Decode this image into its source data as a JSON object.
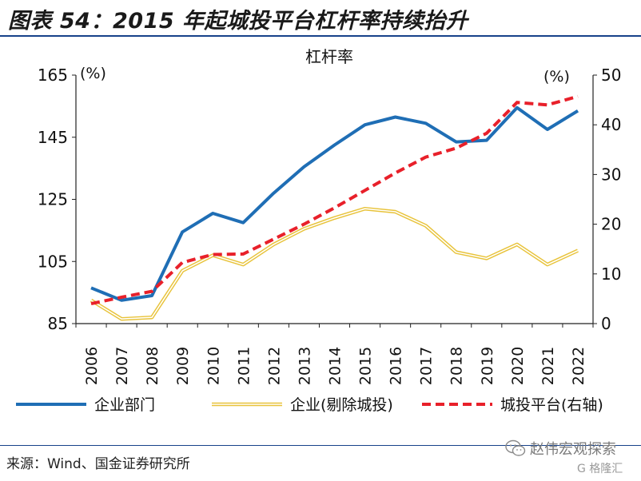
{
  "figure": {
    "label": "图表 54：2015 年起城投平台杠杆率持续抬升",
    "source": "来源：Wind、国金证券研究所",
    "watermark": "赵伟宏观探索",
    "stamp": "G 格隆汇"
  },
  "chart_data": {
    "type": "line",
    "title": "杠杆率",
    "left_unit": "(%)",
    "right_unit": "(%)",
    "x": [
      "2006",
      "2007",
      "2008",
      "2009",
      "2010",
      "2011",
      "2012",
      "2013",
      "2014",
      "2015",
      "2016",
      "2017",
      "2018",
      "2019",
      "2020",
      "2021",
      "2022"
    ],
    "y_left": {
      "lim": [
        85,
        165
      ],
      "ticks": [
        "85",
        "105",
        "125",
        "145",
        "165"
      ]
    },
    "y_right": {
      "lim": [
        0,
        50
      ],
      "ticks": [
        "0",
        "10",
        "20",
        "30",
        "40",
        "50"
      ]
    },
    "series": [
      {
        "name": "企业部门",
        "axis": "left",
        "color": "#1f6eb5",
        "style": "solid",
        "values": [
          96.5,
          92.5,
          94,
          114.5,
          120.5,
          117.5,
          127,
          135.5,
          142.5,
          149,
          151.5,
          149.5,
          143.5,
          144,
          154.5,
          147.5,
          153.5
        ]
      },
      {
        "name": "企业(剔除城投)",
        "axis": "left",
        "color": "#e8c33a",
        "style": "double",
        "values": [
          92.5,
          86.5,
          87,
          102,
          107,
          104,
          110.5,
          115.5,
          119,
          122,
          121,
          116.5,
          108,
          106,
          110.5,
          104,
          108.5
        ]
      },
      {
        "name": "城投平台(右轴)",
        "axis": "right",
        "color": "#e8202a",
        "style": "dashed",
        "values": [
          4,
          5.3,
          6.5,
          12.3,
          13.9,
          14,
          17,
          20,
          23.3,
          26.8,
          30.3,
          33.5,
          35.3,
          38.3,
          44.5,
          44,
          45.7
        ]
      }
    ],
    "legend_position": "bottom"
  }
}
